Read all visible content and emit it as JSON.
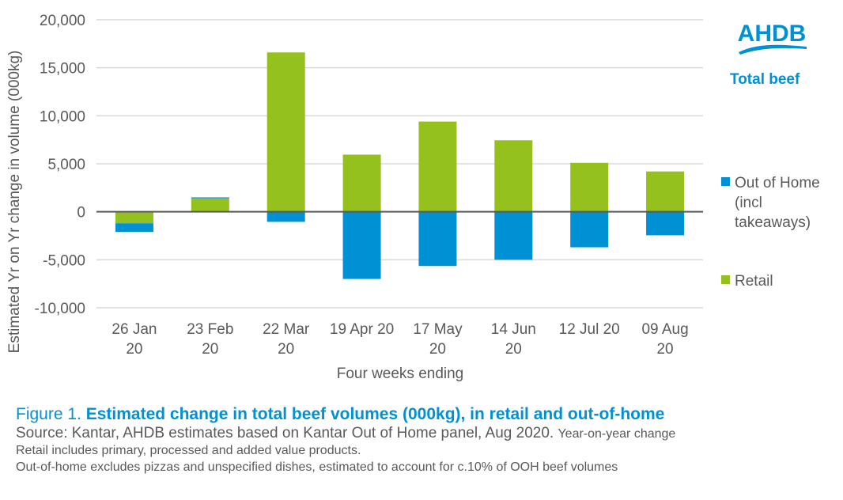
{
  "chart_data": {
    "type": "bar",
    "stacked": true,
    "title": "Estimated change in total beef volumes (000kg), in retail and out-of-home",
    "xlabel": "Four weeks ending",
    "ylabel": "Estimated Yr on Yr change in volume (000kg)",
    "ylim": [
      -10000,
      20000
    ],
    "yticks": [
      20000,
      15000,
      10000,
      5000,
      0,
      -5000,
      -10000
    ],
    "ytick_labels": [
      "20,000",
      "15,000",
      "10,000",
      "5,000",
      "0",
      "-5,000",
      "-10,000"
    ],
    "grid": true,
    "legend_position": "right",
    "categories": [
      [
        "26 Jan",
        "20"
      ],
      [
        "23 Feb",
        "20"
      ],
      [
        "22 Mar",
        "20"
      ],
      [
        "19 Apr 20"
      ],
      [
        "17 May",
        "20"
      ],
      [
        "14 Jun",
        "20"
      ],
      [
        "12 Jul 20"
      ],
      [
        "09 Aug",
        "20"
      ]
    ],
    "series": [
      {
        "name": "Retail",
        "color": "#95c11f",
        "values": [
          -1200,
          1400,
          16600,
          5950,
          9400,
          7450,
          5100,
          4200
        ]
      },
      {
        "name": "Out of Home (incl takeaways)",
        "color": "#0090d4",
        "values": [
          -900,
          100,
          -1050,
          -7000,
          -5650,
          -5000,
          -3700,
          -2450
        ]
      }
    ]
  },
  "legend": {
    "ooh_label": "Out of Home (incl takeaways)",
    "retail_label": "Retail"
  },
  "branding": {
    "logo_text": "AHDB",
    "subtitle": "Total beef"
  },
  "caption": {
    "figure_label": "Figure 1. ",
    "title": "Estimated change in total beef volumes (000kg), in retail and out-of-home",
    "source": "Source: Kantar, AHDB estimates based on Kantar Out of Home panel, Aug 2020. ",
    "source_suffix": "Year-on-year change",
    "note1": "Retail includes primary, processed and added value products.",
    "note2": "Out-of-home excludes pizzas and unspecified dishes, estimated to account for c.10% of OOH beef volumes"
  },
  "colors": {
    "retail": "#95c11f",
    "ooh": "#0090d4",
    "accent": "#0090d4",
    "text": "#595959",
    "grid": "#d9d9d9",
    "zero_line": "#595959"
  }
}
